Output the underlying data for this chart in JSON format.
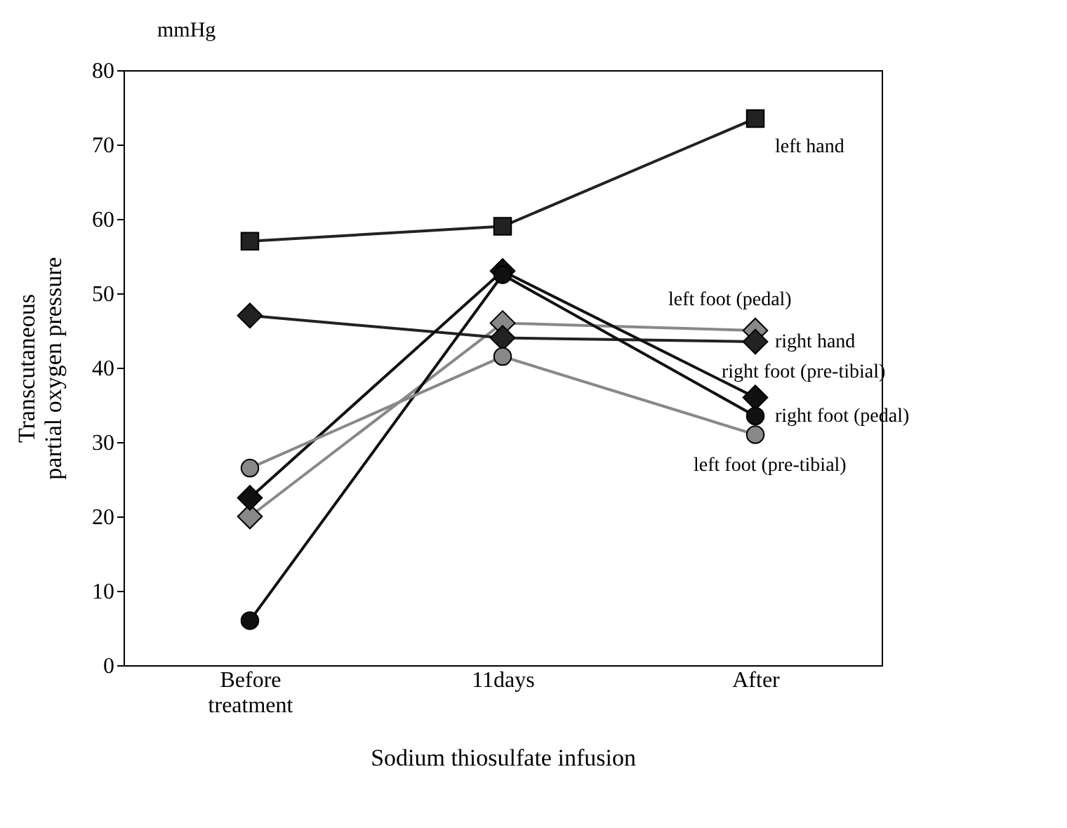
{
  "chart_data": {
    "type": "line",
    "categories": [
      "Before treatment",
      "11days",
      "After"
    ],
    "xlabel": "Sodium thiosulfate infusion",
    "ylabel": "Transcutaneous partial oxygen pressure",
    "annotations": [
      "mmHg"
    ],
    "ylim": [
      0,
      80
    ],
    "yticks": [
      0,
      10,
      20,
      30,
      40,
      50,
      60,
      70,
      80
    ],
    "grid": false,
    "legend": false,
    "series": [
      {
        "name": "left hand",
        "color": "#222222",
        "marker": "square",
        "values": [
          57,
          59,
          73.5
        ]
      },
      {
        "name": "left foot (pedal)",
        "color": "#888888",
        "marker": "diamond",
        "values": [
          20,
          46,
          45
        ]
      },
      {
        "name": "right hand",
        "color": "#222222",
        "marker": "diamond",
        "values": [
          47,
          44,
          43.5
        ]
      },
      {
        "name": "right foot (pre-tibial)",
        "color": "#111111",
        "marker": "diamond",
        "values": [
          22.5,
          53,
          36
        ]
      },
      {
        "name": "right foot (pedal)",
        "color": "#111111",
        "marker": "circle",
        "values": [
          6,
          52.5,
          33.5
        ]
      },
      {
        "name": "left foot (pre-tibial)",
        "color": "#888888",
        "marker": "circle",
        "values": [
          26.5,
          41.5,
          31
        ]
      }
    ]
  }
}
